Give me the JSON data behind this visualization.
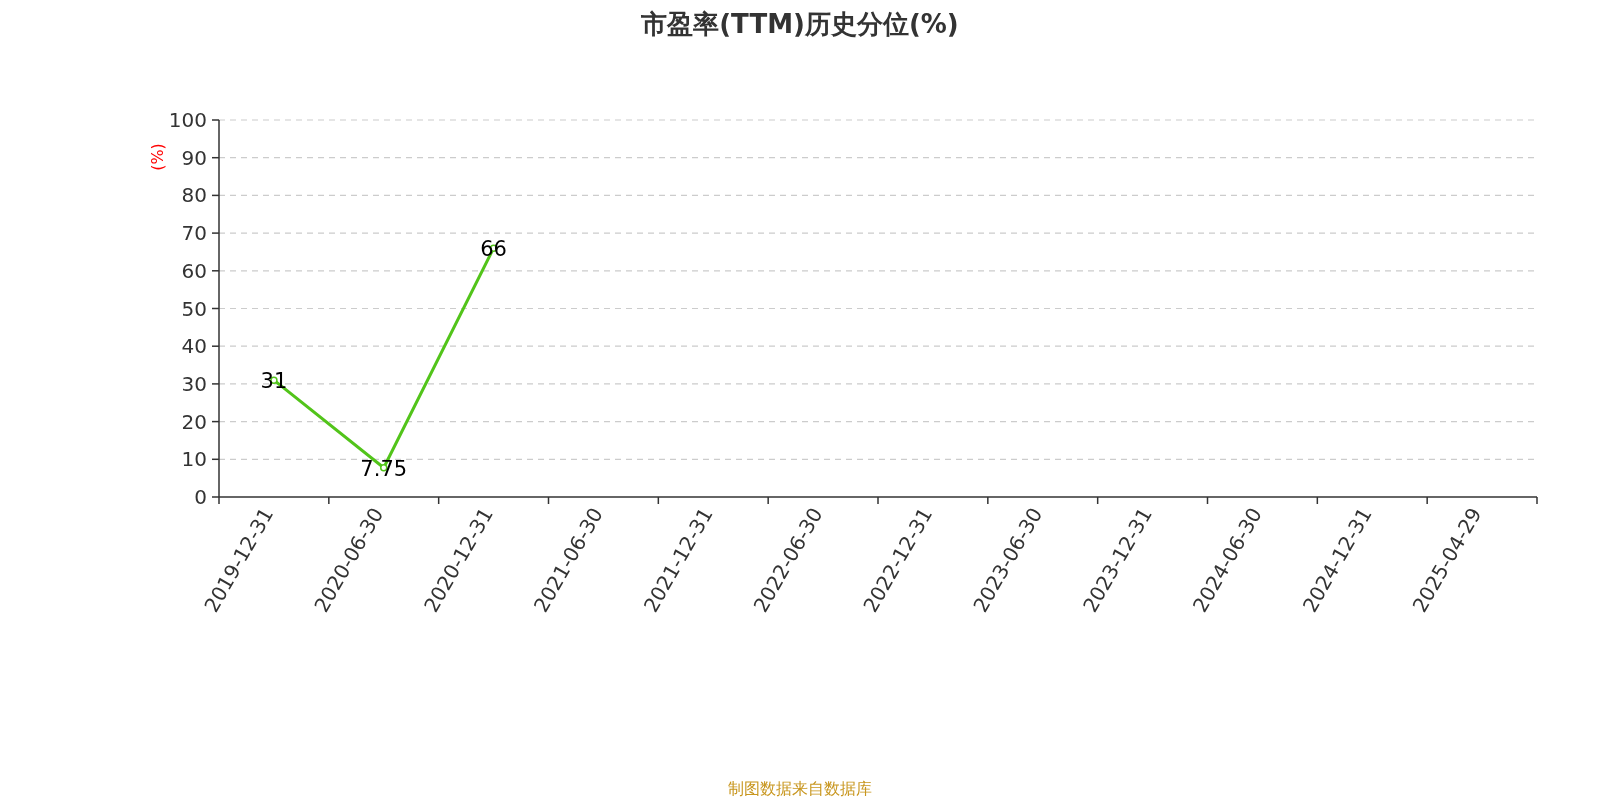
{
  "chart_data": {
    "type": "line",
    "title": "市盈率(TTM)历史分位(%)",
    "ylabel": "(%)",
    "categories": [
      "2019-12-31",
      "2020-06-30",
      "2020-12-31",
      "2021-06-30",
      "2021-12-31",
      "2022-06-30",
      "2022-12-31",
      "2023-06-30",
      "2023-12-31",
      "2024-06-30",
      "2024-12-31",
      "2025-04-29"
    ],
    "values": [
      31,
      7.75,
      66,
      null,
      null,
      null,
      null,
      null,
      null,
      null,
      null,
      null
    ],
    "color": "#52c41a",
    "ylim": [
      0,
      100
    ],
    "yticks": [
      0,
      10,
      20,
      30,
      40,
      50,
      60,
      70,
      80,
      90,
      100
    ],
    "grid": "y",
    "data_labels": true,
    "marker": "circle",
    "annotations": [
      "制图数据来自数据库"
    ]
  }
}
